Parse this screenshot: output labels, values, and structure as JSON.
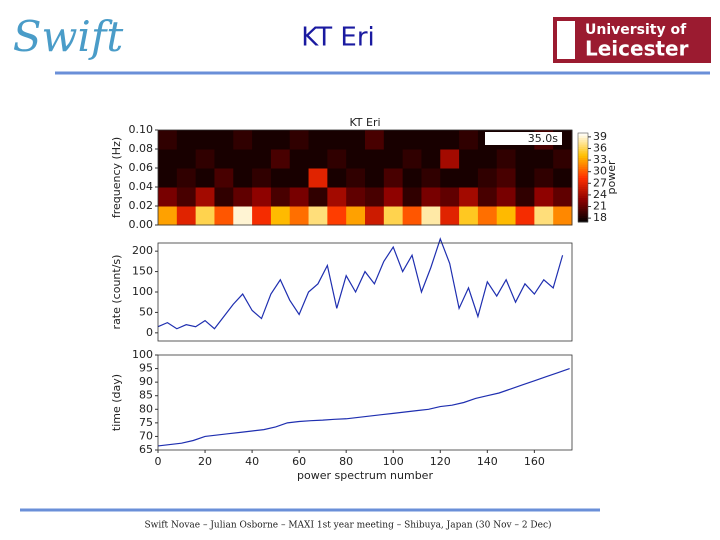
{
  "header": {
    "title": "KT Eri",
    "logo_left": "Swift",
    "logo_right": [
      "University of",
      "Leicester"
    ]
  },
  "footer": "Swift Novae – Julian Osborne – MAXI 1st year meeting – Shibuya, Japan (30 Nov – 2 Dec)",
  "chart_data": [
    {
      "type": "heatmap",
      "title": "KT Eri",
      "ylabel": "frequency (Hz)",
      "annotation": "35.0s",
      "xlim": [
        0,
        176
      ],
      "ylim": [
        0,
        0.1
      ],
      "yticks": [
        {
          "value": 0,
          "label": "0.00"
        },
        {
          "value": 0.02,
          "label": "0.02"
        },
        {
          "value": 0.04,
          "label": "0.04"
        },
        {
          "value": 0.06,
          "label": "0.06"
        },
        {
          "value": 0.08,
          "label": "0.08"
        },
        {
          "value": 0.1,
          "label": "0.10"
        }
      ],
      "z": [
        [
          33,
          27,
          36,
          30,
          39,
          28,
          34,
          31,
          37,
          29,
          33,
          26,
          36,
          30,
          38,
          27,
          35,
          31,
          34,
          28,
          37,
          32
        ],
        [
          22,
          20,
          24,
          19,
          21,
          23,
          20,
          22,
          19,
          24,
          21,
          20,
          23,
          19,
          22,
          21,
          24,
          20,
          22,
          19,
          23,
          21
        ],
        [
          18,
          19,
          18,
          20,
          18,
          19,
          18,
          18,
          27,
          18,
          19,
          18,
          20,
          18,
          19,
          18,
          18,
          19,
          20,
          18,
          19,
          18
        ],
        [
          18,
          18,
          19,
          18,
          18,
          18,
          20,
          18,
          18,
          19,
          18,
          18,
          18,
          19,
          18,
          24,
          18,
          18,
          19,
          18,
          18,
          19
        ],
        [
          19,
          18,
          18,
          18,
          19,
          18,
          18,
          19,
          18,
          18,
          18,
          20,
          18,
          18,
          18,
          18,
          19,
          18,
          18,
          18,
          20,
          18
        ]
      ],
      "colormap": [
        "#000000",
        "#8a0000",
        "#ff3000",
        "#ffc000",
        "#ffffff"
      ],
      "clim": [
        17,
        40
      ],
      "cticks": [
        18,
        21,
        24,
        27,
        30,
        33,
        36,
        39
      ],
      "colorbar_label": "power"
    },
    {
      "type": "line",
      "ylabel": "rate (count/s)",
      "color": "#1f2fb0",
      "xlim": [
        0,
        176
      ],
      "ylim": [
        -20,
        220
      ],
      "yticks": [
        0,
        50,
        100,
        150,
        200
      ],
      "x": [
        0,
        4,
        8,
        12,
        16,
        20,
        24,
        28,
        32,
        36,
        40,
        44,
        48,
        52,
        56,
        60,
        64,
        68,
        72,
        76,
        80,
        84,
        88,
        92,
        96,
        100,
        104,
        108,
        112,
        116,
        120,
        124,
        128,
        132,
        136,
        140,
        144,
        148,
        152,
        156,
        160,
        164,
        168,
        172
      ],
      "values": [
        15,
        25,
        10,
        20,
        15,
        30,
        10,
        40,
        70,
        95,
        55,
        35,
        95,
        130,
        80,
        45,
        100,
        120,
        165,
        60,
        140,
        100,
        150,
        120,
        175,
        210,
        150,
        190,
        100,
        160,
        230,
        170,
        60,
        110,
        40,
        125,
        90,
        130,
        75,
        120,
        95,
        130,
        110,
        190
      ]
    },
    {
      "type": "line",
      "ylabel": "time (day)",
      "xlabel": "power spectrum number",
      "color": "#1f2fb0",
      "xlim": [
        0,
        176
      ],
      "xticks": [
        0,
        20,
        40,
        60,
        80,
        100,
        120,
        140,
        160
      ],
      "ylim": [
        65,
        100
      ],
      "yticks": [
        65,
        70,
        75,
        80,
        85,
        90,
        95,
        100
      ],
      "x": [
        0,
        5,
        10,
        15,
        20,
        25,
        30,
        35,
        40,
        45,
        50,
        55,
        60,
        65,
        70,
        75,
        80,
        85,
        90,
        95,
        100,
        105,
        110,
        115,
        120,
        125,
        130,
        135,
        140,
        145,
        150,
        155,
        160,
        165,
        170,
        175
      ],
      "values": [
        66.5,
        67,
        67.5,
        68.5,
        70,
        70.5,
        71,
        71.5,
        72,
        72.5,
        73.5,
        75,
        75.5,
        75.8,
        76,
        76.3,
        76.5,
        77,
        77.5,
        78,
        78.5,
        79,
        79.5,
        80,
        81,
        81.5,
        82.5,
        84,
        85,
        86,
        87.5,
        89,
        90.5,
        92,
        93.5,
        95
      ]
    }
  ]
}
